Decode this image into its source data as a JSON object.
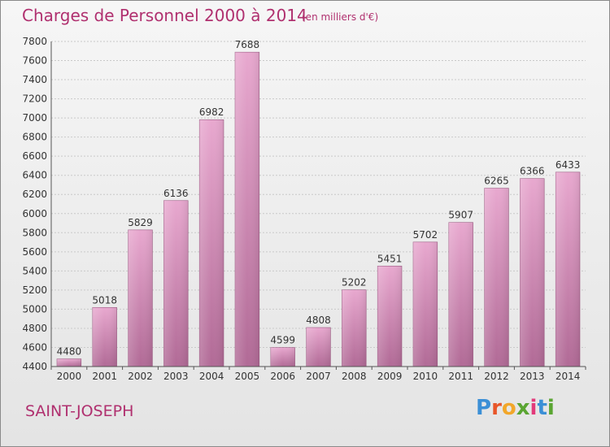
{
  "header": {
    "title": "Charges de Personnel 2000 à 2014",
    "unit": "(en milliers d'€)"
  },
  "footer": {
    "location": "SAINT-JOSEPH",
    "logo_text": "Proxiti"
  },
  "colors": {
    "title": "#b0306f",
    "bar_top": "#e8a8cf",
    "bar_bottom": "#b16a96",
    "logo_letters": [
      "#3b8fd6",
      "#e8562a",
      "#f2a72a",
      "#5aa532",
      "#e23a7a",
      "#3b8fd6",
      "#5aa532"
    ]
  },
  "chart_data": {
    "type": "bar",
    "title": "Charges de Personnel 2000 à 2014",
    "subtitle": "(en milliers d'€)",
    "categories": [
      "2000",
      "2001",
      "2002",
      "2003",
      "2004",
      "2005",
      "2006",
      "2007",
      "2008",
      "2009",
      "2010",
      "2011",
      "2012",
      "2013",
      "2014"
    ],
    "values": [
      4480,
      5018,
      5829,
      6136,
      6982,
      7688,
      4599,
      4808,
      5202,
      5451,
      5702,
      5907,
      6265,
      6366,
      6433
    ],
    "ylim": [
      4400,
      7800
    ],
    "yticks": [
      4400,
      4600,
      4800,
      5000,
      5200,
      5400,
      5600,
      5800,
      6000,
      6200,
      6400,
      6600,
      6800,
      7000,
      7200,
      7400,
      7600,
      7800
    ],
    "grid": true,
    "data_labels": true
  }
}
